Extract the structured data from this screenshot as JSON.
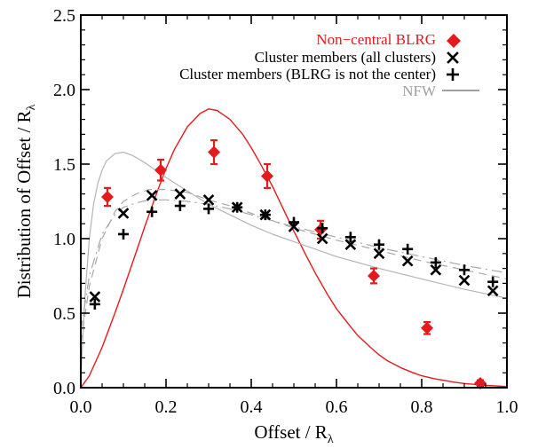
{
  "chart_data": {
    "type": "scatter",
    "xlabel": "Offset / R",
    "xlabel_sub": "λ",
    "ylabel": "Distribution of Offset / R",
    "ylabel_sub": "λ",
    "xlim": [
      0.0,
      1.0
    ],
    "ylim": [
      0.0,
      2.5
    ],
    "x_ticks": [
      "0.0",
      "0.2",
      "0.4",
      "0.6",
      "0.8",
      "1.0"
    ],
    "y_ticks": [
      "0.0",
      "0.5",
      "1.0",
      "1.5",
      "2.0",
      "2.5"
    ],
    "legend_position": "top-right",
    "legend": [
      {
        "label": "Non−central BLRG",
        "marker": "diamond",
        "color": "#e41a1c"
      },
      {
        "label": "Cluster members (all clusters)",
        "marker": "x",
        "color": "#000000"
      },
      {
        "label": "Cluster members (BLRG is not the center)",
        "marker": "plus",
        "color": "#000000"
      },
      {
        "label": "NFW",
        "marker": "line",
        "color": "#a0a0a0"
      }
    ],
    "series": [
      {
        "name": "Non−central BLRG",
        "marker": "diamond",
        "color": "#e41a1c",
        "points": [
          {
            "x": 0.0625,
            "y": 1.28,
            "err": 0.06
          },
          {
            "x": 0.1875,
            "y": 1.46,
            "err": 0.07
          },
          {
            "x": 0.3125,
            "y": 1.58,
            "err": 0.08
          },
          {
            "x": 0.4375,
            "y": 1.42,
            "err": 0.08
          },
          {
            "x": 0.5625,
            "y": 1.06,
            "err": 0.06
          },
          {
            "x": 0.6875,
            "y": 0.75,
            "err": 0.05
          },
          {
            "x": 0.8125,
            "y": 0.4,
            "err": 0.04
          },
          {
            "x": 0.9375,
            "y": 0.03,
            "err": 0.02
          }
        ]
      },
      {
        "name": "Cluster members (all clusters)",
        "marker": "x",
        "color": "#000000",
        "points": [
          {
            "x": 0.033,
            "y": 0.61
          },
          {
            "x": 0.1,
            "y": 1.17
          },
          {
            "x": 0.167,
            "y": 1.29
          },
          {
            "x": 0.233,
            "y": 1.3
          },
          {
            "x": 0.3,
            "y": 1.26
          },
          {
            "x": 0.367,
            "y": 1.21
          },
          {
            "x": 0.433,
            "y": 1.16
          },
          {
            "x": 0.5,
            "y": 1.08
          },
          {
            "x": 0.567,
            "y": 1.0
          },
          {
            "x": 0.633,
            "y": 0.96
          },
          {
            "x": 0.7,
            "y": 0.9
          },
          {
            "x": 0.767,
            "y": 0.85
          },
          {
            "x": 0.833,
            "y": 0.79
          },
          {
            "x": 0.9,
            "y": 0.72
          },
          {
            "x": 0.967,
            "y": 0.65
          }
        ]
      },
      {
        "name": "Cluster members (BLRG is not the center)",
        "marker": "plus",
        "color": "#000000",
        "points": [
          {
            "x": 0.033,
            "y": 0.56
          },
          {
            "x": 0.1,
            "y": 1.03
          },
          {
            "x": 0.167,
            "y": 1.18
          },
          {
            "x": 0.233,
            "y": 1.22
          },
          {
            "x": 0.3,
            "y": 1.2
          },
          {
            "x": 0.367,
            "y": 1.21
          },
          {
            "x": 0.433,
            "y": 1.16
          },
          {
            "x": 0.5,
            "y": 1.11
          },
          {
            "x": 0.567,
            "y": 1.07
          },
          {
            "x": 0.633,
            "y": 1.01
          },
          {
            "x": 0.7,
            "y": 0.96
          },
          {
            "x": 0.767,
            "y": 0.93
          },
          {
            "x": 0.833,
            "y": 0.84
          },
          {
            "x": 0.9,
            "y": 0.79
          },
          {
            "x": 0.967,
            "y": 0.71
          }
        ]
      }
    ],
    "curves": [
      {
        "style": "solid",
        "color": "#e41a1c",
        "x": [
          0.0,
          0.02,
          0.05,
          0.08,
          0.1,
          0.13,
          0.15,
          0.18,
          0.2,
          0.22,
          0.25,
          0.28,
          0.3,
          0.32,
          0.35,
          0.38,
          0.4,
          0.42,
          0.45,
          0.48,
          0.5,
          0.53,
          0.55,
          0.58,
          0.6,
          0.63,
          0.65,
          0.68,
          0.7,
          0.72,
          0.75,
          0.78,
          0.8,
          0.83,
          0.85,
          0.88,
          0.9,
          0.93,
          0.95,
          0.98,
          1.0
        ],
        "y": [
          0.0,
          0.08,
          0.27,
          0.5,
          0.66,
          0.91,
          1.08,
          1.32,
          1.47,
          1.6,
          1.75,
          1.84,
          1.87,
          1.86,
          1.8,
          1.7,
          1.61,
          1.51,
          1.35,
          1.17,
          1.05,
          0.88,
          0.77,
          0.62,
          0.53,
          0.42,
          0.35,
          0.27,
          0.22,
          0.18,
          0.135,
          0.1,
          0.08,
          0.06,
          0.05,
          0.035,
          0.028,
          0.02,
          0.015,
          0.011,
          0.008
        ]
      },
      {
        "style": "solid",
        "color": "#b4b4b4",
        "x": [
          0.0,
          0.005,
          0.01,
          0.02,
          0.03,
          0.04,
          0.05,
          0.06,
          0.08,
          0.1,
          0.12,
          0.15,
          0.2,
          0.25,
          0.3,
          0.35,
          0.4,
          0.45,
          0.5,
          0.6,
          0.7,
          0.8,
          0.9,
          1.0
        ],
        "y": [
          0.05,
          0.35,
          0.62,
          1.0,
          1.23,
          1.37,
          1.46,
          1.52,
          1.57,
          1.58,
          1.56,
          1.51,
          1.41,
          1.32,
          1.23,
          1.16,
          1.09,
          1.03,
          0.98,
          0.88,
          0.8,
          0.73,
          0.66,
          0.6
        ]
      },
      {
        "style": "dashed",
        "color": "#a8a8a8",
        "x": [
          0.0,
          0.02,
          0.05,
          0.08,
          0.1,
          0.13,
          0.16,
          0.2,
          0.25,
          0.3,
          0.35,
          0.4,
          0.45,
          0.5,
          0.6,
          0.7,
          0.8,
          0.9,
          1.0
        ],
        "y": [
          0.3,
          0.68,
          1.0,
          1.18,
          1.25,
          1.3,
          1.33,
          1.33,
          1.31,
          1.26,
          1.22,
          1.17,
          1.12,
          1.07,
          0.99,
          0.92,
          0.85,
          0.79,
          0.73
        ]
      },
      {
        "style": "dashdot",
        "color": "#a8a8a8",
        "x": [
          0.0,
          0.02,
          0.05,
          0.08,
          0.1,
          0.13,
          0.16,
          0.2,
          0.25,
          0.3,
          0.35,
          0.4,
          0.45,
          0.5,
          0.6,
          0.7,
          0.8,
          0.9,
          1.0
        ],
        "y": [
          0.38,
          0.75,
          1.03,
          1.16,
          1.21,
          1.24,
          1.26,
          1.26,
          1.25,
          1.23,
          1.2,
          1.16,
          1.12,
          1.08,
          1.01,
          0.94,
          0.88,
          0.82,
          0.77
        ]
      }
    ]
  }
}
